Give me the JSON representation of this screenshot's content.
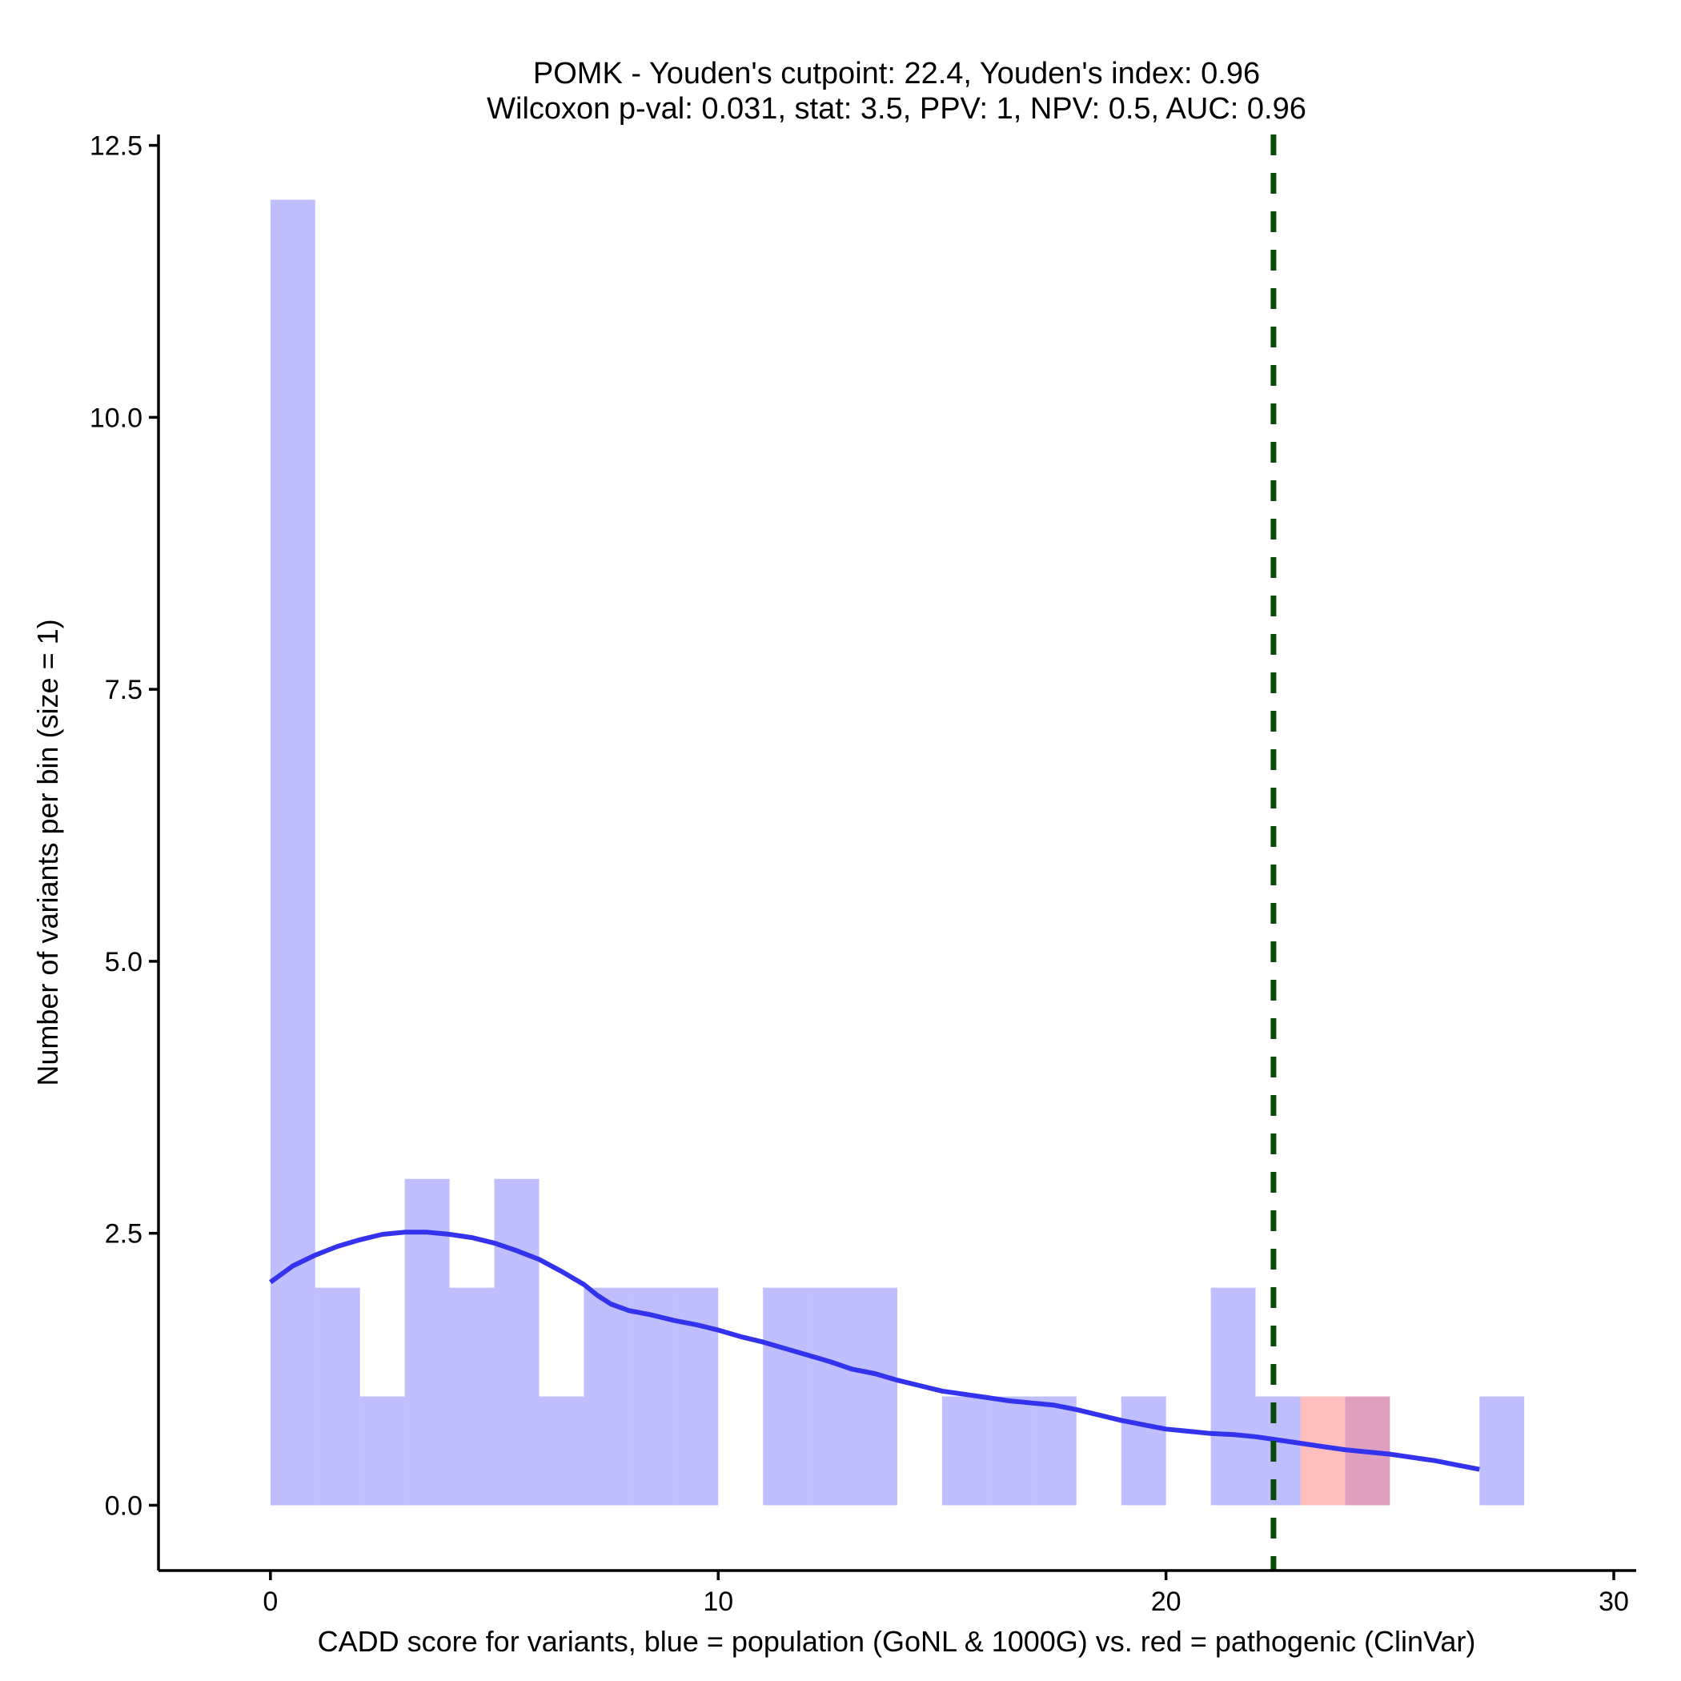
{
  "chart_data": {
    "type": "histogram",
    "title_line1": "POMK - Youden's cutpoint: 22.4, Youden's index: 0.96",
    "title_line2": "Wilcoxon p-val: 0.031, stat: 3.5, PPV: 1, NPV: 0.5, AUC: 0.96",
    "xlabel": "CADD score for variants, blue = population (GoNL & 1000G) vs. red = pathogenic (ClinVar)",
    "ylabel": "Number of variants per bin (size = 1)",
    "xlim": [
      -2.5,
      30.5
    ],
    "ylim": [
      -0.6,
      12.6
    ],
    "x_ticks": [
      0,
      10,
      20,
      30
    ],
    "x_tick_labels": [
      "0",
      "10",
      "20",
      "30"
    ],
    "y_ticks": [
      0,
      2.5,
      5,
      7.5,
      10,
      12.5
    ],
    "y_tick_labels": [
      "0.0",
      "2.5",
      "5.0",
      "7.5",
      "10.0",
      "12.5"
    ],
    "bin_width": 1,
    "series": [
      {
        "name": "population (GoNL & 1000G)",
        "color": "#8080ff",
        "bins": [
          {
            "x0": 0,
            "count": 12
          },
          {
            "x0": 1,
            "count": 2
          },
          {
            "x0": 2,
            "count": 1
          },
          {
            "x0": 3,
            "count": 3
          },
          {
            "x0": 4,
            "count": 2
          },
          {
            "x0": 5,
            "count": 3
          },
          {
            "x0": 6,
            "count": 1
          },
          {
            "x0": 7,
            "count": 2
          },
          {
            "x0": 8,
            "count": 2
          },
          {
            "x0": 9,
            "count": 2
          },
          {
            "x0": 11,
            "count": 2
          },
          {
            "x0": 12,
            "count": 2
          },
          {
            "x0": 13,
            "count": 2
          },
          {
            "x0": 15,
            "count": 1
          },
          {
            "x0": 16,
            "count": 1
          },
          {
            "x0": 17,
            "count": 1
          },
          {
            "x0": 19,
            "count": 1
          },
          {
            "x0": 21,
            "count": 2
          },
          {
            "x0": 22,
            "count": 1
          },
          {
            "x0": 24,
            "count": 1
          },
          {
            "x0": 27,
            "count": 1
          }
        ]
      },
      {
        "name": "pathogenic (ClinVar)",
        "color": "#ff8080",
        "bins": [
          {
            "x0": 23,
            "count": 1
          },
          {
            "x0": 24,
            "count": 1
          }
        ]
      }
    ],
    "density_curve": {
      "name": "population density (scaled)",
      "color": "#3333ee",
      "points": [
        [
          0,
          2.05
        ],
        [
          0.5,
          2.2
        ],
        [
          1,
          2.3
        ],
        [
          1.5,
          2.38
        ],
        [
          2,
          2.44
        ],
        [
          2.5,
          2.49
        ],
        [
          3,
          2.51
        ],
        [
          3.5,
          2.51
        ],
        [
          4,
          2.49
        ],
        [
          4.5,
          2.46
        ],
        [
          5,
          2.41
        ],
        [
          5.5,
          2.34
        ],
        [
          6,
          2.26
        ],
        [
          6.5,
          2.15
        ],
        [
          7,
          2.03
        ],
        [
          7.3,
          1.93
        ],
        [
          7.6,
          1.85
        ],
        [
          8,
          1.79
        ],
        [
          8.5,
          1.75
        ],
        [
          9,
          1.7
        ],
        [
          9.5,
          1.66
        ],
        [
          10,
          1.61
        ],
        [
          10.5,
          1.55
        ],
        [
          11,
          1.5
        ],
        [
          11.5,
          1.44
        ],
        [
          12,
          1.38
        ],
        [
          12.5,
          1.32
        ],
        [
          13,
          1.25
        ],
        [
          13.5,
          1.21
        ],
        [
          14,
          1.15
        ],
        [
          14.5,
          1.1
        ],
        [
          15,
          1.05
        ],
        [
          15.5,
          1.02
        ],
        [
          16,
          0.99
        ],
        [
          16.5,
          0.96
        ],
        [
          17,
          0.94
        ],
        [
          17.5,
          0.92
        ],
        [
          18,
          0.88
        ],
        [
          18.5,
          0.83
        ],
        [
          19,
          0.78
        ],
        [
          19.5,
          0.74
        ],
        [
          20,
          0.7
        ],
        [
          20.5,
          0.68
        ],
        [
          21,
          0.66
        ],
        [
          21.5,
          0.65
        ],
        [
          22,
          0.63
        ],
        [
          22.5,
          0.6
        ],
        [
          23,
          0.57
        ],
        [
          23.5,
          0.54
        ],
        [
          24,
          0.51
        ],
        [
          24.5,
          0.49
        ],
        [
          25,
          0.47
        ],
        [
          25.5,
          0.44
        ],
        [
          26,
          0.41
        ],
        [
          26.5,
          0.37
        ],
        [
          27,
          0.33
        ]
      ]
    },
    "cutpoint": {
      "label": "Youden's cutpoint",
      "x": 22.4,
      "color": "#0b4a0b",
      "style": "dashed"
    }
  }
}
